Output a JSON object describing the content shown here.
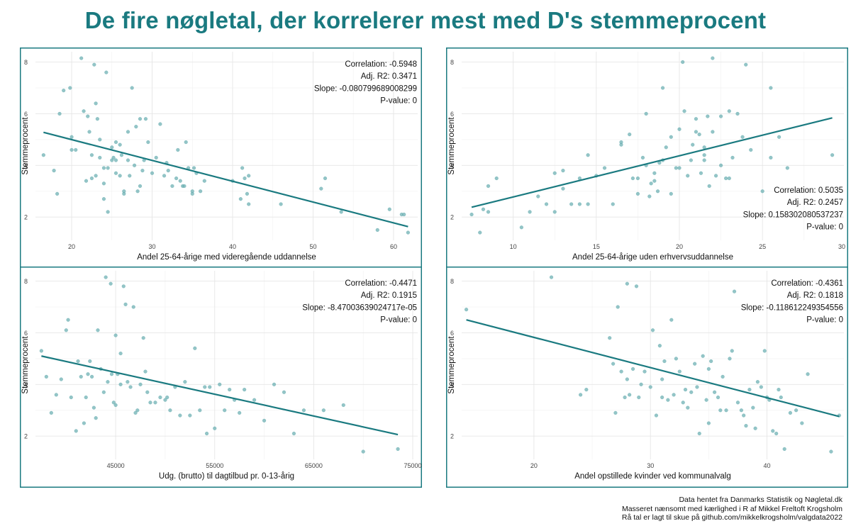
{
  "title": "De fire nøgletal, der korrelerer mest med D's stemmeprocent",
  "colors": {
    "accent": "#1a7a80",
    "points": "#6fb1b4",
    "grid": "#e6e6e6"
  },
  "footer": [
    "Data hentet fra Danmarks Statistik og Nøgletal.dk",
    "Masseret nænsomt med kærlighed i R af Mikkel Freltoft Krogsholm",
    "Rå tal er lagt til skue på github.com/mikkelkrogsholm/valgdata2022"
  ],
  "chart_data": [
    {
      "type": "scatter",
      "xlabel": "Andel 25-64-årige med videregående uddannelse",
      "ylabel": "Stemmeprocent",
      "xlim": [
        15.5,
        63
      ],
      "ylim": [
        1.1,
        8.4
      ],
      "xticks": [
        20,
        30,
        40,
        50,
        60
      ],
      "xtick_labels": [
        "20",
        "30",
        "40",
        "50",
        "60"
      ],
      "yticks": [
        2,
        4,
        6,
        8
      ],
      "stats": [
        "Correlation: -0.5948",
        "Adj. R2: 0.3471",
        "Slope: -0.080799689008299",
        "P-value: 0"
      ],
      "stats_position": "top-right",
      "trend": {
        "x": [
          16.5,
          61.8
        ],
        "y": [
          5.28,
          1.63
        ]
      },
      "x": [
        16.5,
        17.8,
        18.2,
        18.5,
        19.0,
        19.8,
        20.0,
        20.0,
        20.5,
        21.2,
        21.5,
        21.8,
        22.0,
        22.2,
        22.5,
        22.5,
        22.8,
        23.0,
        23.0,
        23.2,
        23.5,
        23.5,
        24.0,
        24.0,
        24.0,
        24.3,
        24.5,
        24.5,
        25.0,
        25.0,
        25.2,
        25.5,
        25.5,
        25.5,
        26.0,
        26.0,
        26.2,
        26.5,
        26.5,
        27.0,
        27.0,
        27.2,
        27.5,
        27.8,
        28.0,
        28.2,
        28.5,
        28.5,
        28.8,
        29.0,
        29.2,
        29.5,
        30.0,
        30.5,
        31.0,
        31.5,
        31.8,
        32.0,
        32.5,
        33.0,
        33.2,
        33.5,
        33.8,
        34.0,
        34.2,
        34.5,
        35.0,
        35.0,
        35.2,
        35.5,
        36.0,
        36.5,
        40.0,
        41.0,
        41.2,
        41.5,
        41.8,
        42.0,
        42.0,
        46.0,
        51.0,
        51.5,
        53.5,
        58.0,
        59.5,
        61.0,
        61.3,
        61.8
      ],
      "y": [
        4.4,
        3.8,
        2.9,
        6.0,
        6.9,
        7.0,
        5.1,
        4.6,
        4.6,
        8.15,
        6.1,
        3.4,
        5.9,
        5.3,
        4.4,
        3.5,
        7.9,
        3.6,
        6.4,
        5.8,
        5.0,
        4.3,
        3.9,
        3.3,
        2.7,
        7.6,
        3.9,
        2.2,
        4.7,
        4.2,
        4.3,
        4.9,
        4.2,
        3.7,
        4.8,
        3.6,
        4.4,
        2.9,
        3.0,
        5.3,
        4.2,
        3.6,
        7.0,
        4.0,
        5.5,
        3.0,
        3.2,
        5.8,
        3.8,
        4.2,
        5.8,
        4.9,
        3.7,
        4.3,
        5.6,
        3.6,
        4.1,
        3.8,
        3.2,
        3.5,
        4.6,
        3.4,
        3.2,
        3.2,
        4.9,
        3.9,
        3.0,
        2.9,
        3.9,
        3.7,
        3.0,
        3.4,
        3.4,
        2.7,
        3.9,
        3.5,
        2.9,
        3.6,
        2.5,
        2.5,
        3.1,
        3.5,
        2.2,
        1.5,
        2.3,
        2.1,
        2.1,
        1.4
      ]
    },
    {
      "type": "scatter",
      "xlabel": "Andel 25-64-årige uden erhvervsuddannelse",
      "ylabel": "Stemmeprocent",
      "xlim": [
        6.9,
        29.9
      ],
      "ylim": [
        1.1,
        8.4
      ],
      "xticks": [
        10,
        15,
        20,
        25,
        30
      ],
      "xtick_labels": [
        "10",
        "15",
        "20",
        "25",
        "30"
      ],
      "yticks": [
        2,
        4,
        6,
        8
      ],
      "stats": [
        "Correlation: 0.5035",
        "Adj. R2: 0.2457",
        "Slope: 0.158302080537237",
        "P-value: 0"
      ],
      "stats_position": "bottom-right",
      "trend": {
        "x": [
          7.5,
          29.2
        ],
        "y": [
          2.38,
          5.84
        ]
      },
      "x": [
        7.5,
        8.0,
        8.2,
        8.5,
        8.5,
        9.0,
        10.5,
        11.0,
        11.5,
        12.0,
        12.5,
        12.5,
        13.0,
        13.0,
        13.5,
        14.0,
        14.0,
        14.5,
        14.5,
        15.0,
        15.5,
        16.0,
        16.5,
        16.5,
        17.0,
        17.2,
        17.5,
        17.5,
        17.8,
        18.0,
        18.0,
        18.2,
        18.3,
        18.5,
        18.5,
        18.7,
        18.8,
        19.0,
        19.0,
        19.2,
        19.5,
        19.5,
        19.8,
        20.0,
        20.0,
        20.2,
        20.3,
        20.5,
        20.7,
        20.8,
        21.0,
        21.0,
        21.2,
        21.3,
        21.5,
        21.5,
        21.5,
        21.7,
        21.8,
        22.0,
        22.0,
        22.2,
        22.5,
        22.5,
        22.8,
        23.0,
        23.0,
        23.2,
        23.5,
        23.8,
        24.0,
        24.3,
        25.0,
        25.5,
        25.5,
        26.0,
        26.5,
        29.2
      ],
      "y": [
        2.1,
        1.4,
        2.3,
        3.2,
        2.2,
        3.5,
        1.6,
        2.2,
        2.8,
        2.5,
        2.2,
        3.7,
        3.1,
        3.8,
        2.5,
        2.5,
        3.5,
        4.4,
        2.5,
        3.6,
        3.9,
        2.5,
        4.8,
        4.9,
        5.2,
        3.5,
        2.9,
        3.5,
        4.3,
        6.0,
        4.0,
        2.8,
        3.3,
        3.4,
        3.7,
        3.0,
        4.1,
        7.0,
        4.2,
        4.7,
        5.1,
        2.9,
        3.9,
        3.9,
        5.4,
        8.0,
        6.1,
        3.6,
        4.2,
        4.8,
        5.8,
        5.3,
        5.2,
        3.7,
        4.4,
        4.7,
        4.2,
        5.9,
        3.2,
        5.3,
        8.15,
        3.6,
        5.9,
        4.0,
        3.5,
        6.1,
        3.5,
        4.3,
        6.0,
        5.1,
        7.9,
        4.6,
        3.0,
        4.3,
        7.0,
        5.1,
        3.9,
        4.4
      ]
    },
    {
      "type": "scatter",
      "xlabel": "Udg. (brutto) til dagtilbud pr. 0-13-årig",
      "ylabel": "Stemmeprocent",
      "xlim": [
        36900,
        75500
      ],
      "ylim": [
        1.1,
        8.4
      ],
      "xticks": [
        45000,
        55000,
        65000,
        75000
      ],
      "xtick_labels": [
        "45000",
        "55000",
        "65000",
        "75000"
      ],
      "yticks": [
        2,
        4,
        6,
        8
      ],
      "stats": [
        "Correlation: -0.4471",
        "Adj. R2: 0.1915",
        "Slope: -8.47003639024717e-05",
        "P-value: 0"
      ],
      "stats_position": "top-right",
      "trend": {
        "x": [
          37500,
          73500
        ],
        "y": [
          5.1,
          2.06
        ]
      },
      "x": [
        37500,
        38000,
        38500,
        39000,
        39500,
        40000,
        40200,
        40500,
        41000,
        41200,
        41500,
        41800,
        42000,
        42200,
        42400,
        42600,
        42800,
        43000,
        43200,
        43500,
        43800,
        44000,
        44200,
        44500,
        44600,
        44800,
        45000,
        45000,
        45200,
        45500,
        45500,
        45800,
        46000,
        46200,
        46500,
        46800,
        47000,
        47200,
        47500,
        47800,
        48000,
        48200,
        48500,
        49000,
        49500,
        50000,
        50200,
        50500,
        51000,
        51500,
        52000,
        52500,
        53000,
        53500,
        54000,
        54200,
        54500,
        55000,
        55500,
        56000,
        56500,
        57000,
        57500,
        58000,
        59000,
        60000,
        61000,
        62000,
        63000,
        64000,
        66000,
        68000,
        70000,
        73500
      ],
      "y": [
        5.3,
        4.3,
        2.9,
        3.6,
        4.2,
        6.1,
        6.5,
        3.5,
        2.2,
        4.9,
        4.3,
        2.5,
        3.5,
        4.4,
        4.9,
        4.3,
        3.1,
        2.7,
        6.1,
        4.6,
        3.7,
        8.15,
        4.1,
        7.9,
        4.4,
        3.3,
        3.2,
        5.9,
        4.4,
        4.0,
        5.2,
        7.8,
        7.1,
        4.1,
        3.9,
        7.0,
        2.9,
        3.0,
        4.0,
        5.8,
        4.5,
        3.7,
        3.3,
        3.3,
        3.5,
        3.4,
        3.5,
        3.0,
        3.9,
        2.8,
        4.1,
        2.8,
        5.4,
        3.0,
        3.9,
        2.1,
        3.9,
        2.3,
        4.0,
        3.0,
        3.8,
        3.4,
        2.9,
        3.8,
        3.4,
        2.6,
        4.0,
        3.7,
        2.1,
        3.0,
        3.0,
        3.2,
        1.4,
        1.5
      ]
    },
    {
      "type": "scatter",
      "xlabel": "Andel opstillede kvinder ved kommunalvalg",
      "ylabel": "Stemmeprocent",
      "xlim": [
        13.8,
        46.6
      ],
      "ylim": [
        1.1,
        8.4
      ],
      "xticks": [
        20,
        30,
        40
      ],
      "xtick_labels": [
        "20",
        "30",
        "40"
      ],
      "yticks": [
        2,
        4,
        6,
        8
      ],
      "stats": [
        "Correlation: -0.4361",
        "Adj. R2: 0.1818",
        "Slope: -0.118612249354556",
        "P-value: 0"
      ],
      "stats_position": "top-right",
      "trend": {
        "x": [
          14.2,
          46.2
        ],
        "y": [
          6.5,
          2.76
        ]
      },
      "x": [
        14.2,
        21.5,
        24.0,
        24.5,
        26.5,
        26.8,
        27.0,
        27.2,
        27.5,
        27.8,
        28.0,
        28.0,
        28.2,
        28.5,
        28.8,
        29.0,
        29.2,
        29.5,
        30.0,
        30.2,
        30.5,
        30.8,
        31.0,
        31.0,
        31.2,
        31.5,
        31.8,
        32.0,
        32.2,
        32.5,
        32.8,
        33.0,
        33.2,
        33.5,
        33.8,
        34.0,
        34.2,
        34.5,
        34.8,
        35.0,
        35.0,
        35.2,
        35.5,
        35.8,
        36.0,
        36.2,
        36.5,
        36.8,
        37.0,
        37.2,
        37.5,
        37.8,
        38.0,
        38.2,
        38.5,
        38.8,
        39.0,
        39.2,
        39.5,
        39.8,
        40.0,
        40.2,
        40.5,
        40.8,
        41.0,
        41.2,
        41.5,
        42.0,
        42.5,
        43.0,
        43.5,
        45.5,
        46.2
      ],
      "y": [
        6.9,
        8.15,
        3.6,
        3.8,
        5.8,
        4.8,
        2.9,
        7.0,
        4.5,
        3.5,
        7.9,
        4.2,
        3.6,
        4.6,
        7.8,
        3.5,
        4.0,
        4.5,
        3.9,
        6.1,
        2.8,
        5.5,
        4.2,
        3.5,
        4.9,
        3.4,
        6.5,
        3.6,
        5.0,
        4.5,
        3.3,
        3.8,
        3.1,
        3.7,
        4.8,
        3.9,
        2.1,
        5.1,
        3.4,
        4.6,
        2.5,
        4.9,
        3.7,
        3.5,
        3.0,
        4.3,
        3.0,
        5.0,
        5.3,
        7.6,
        3.3,
        3.0,
        2.8,
        2.4,
        3.8,
        3.1,
        2.3,
        4.1,
        3.9,
        5.3,
        3.5,
        3.4,
        2.2,
        2.1,
        3.8,
        3.5,
        1.5,
        2.9,
        3.0,
        2.5,
        4.4,
        1.4,
        2.8
      ]
    }
  ]
}
